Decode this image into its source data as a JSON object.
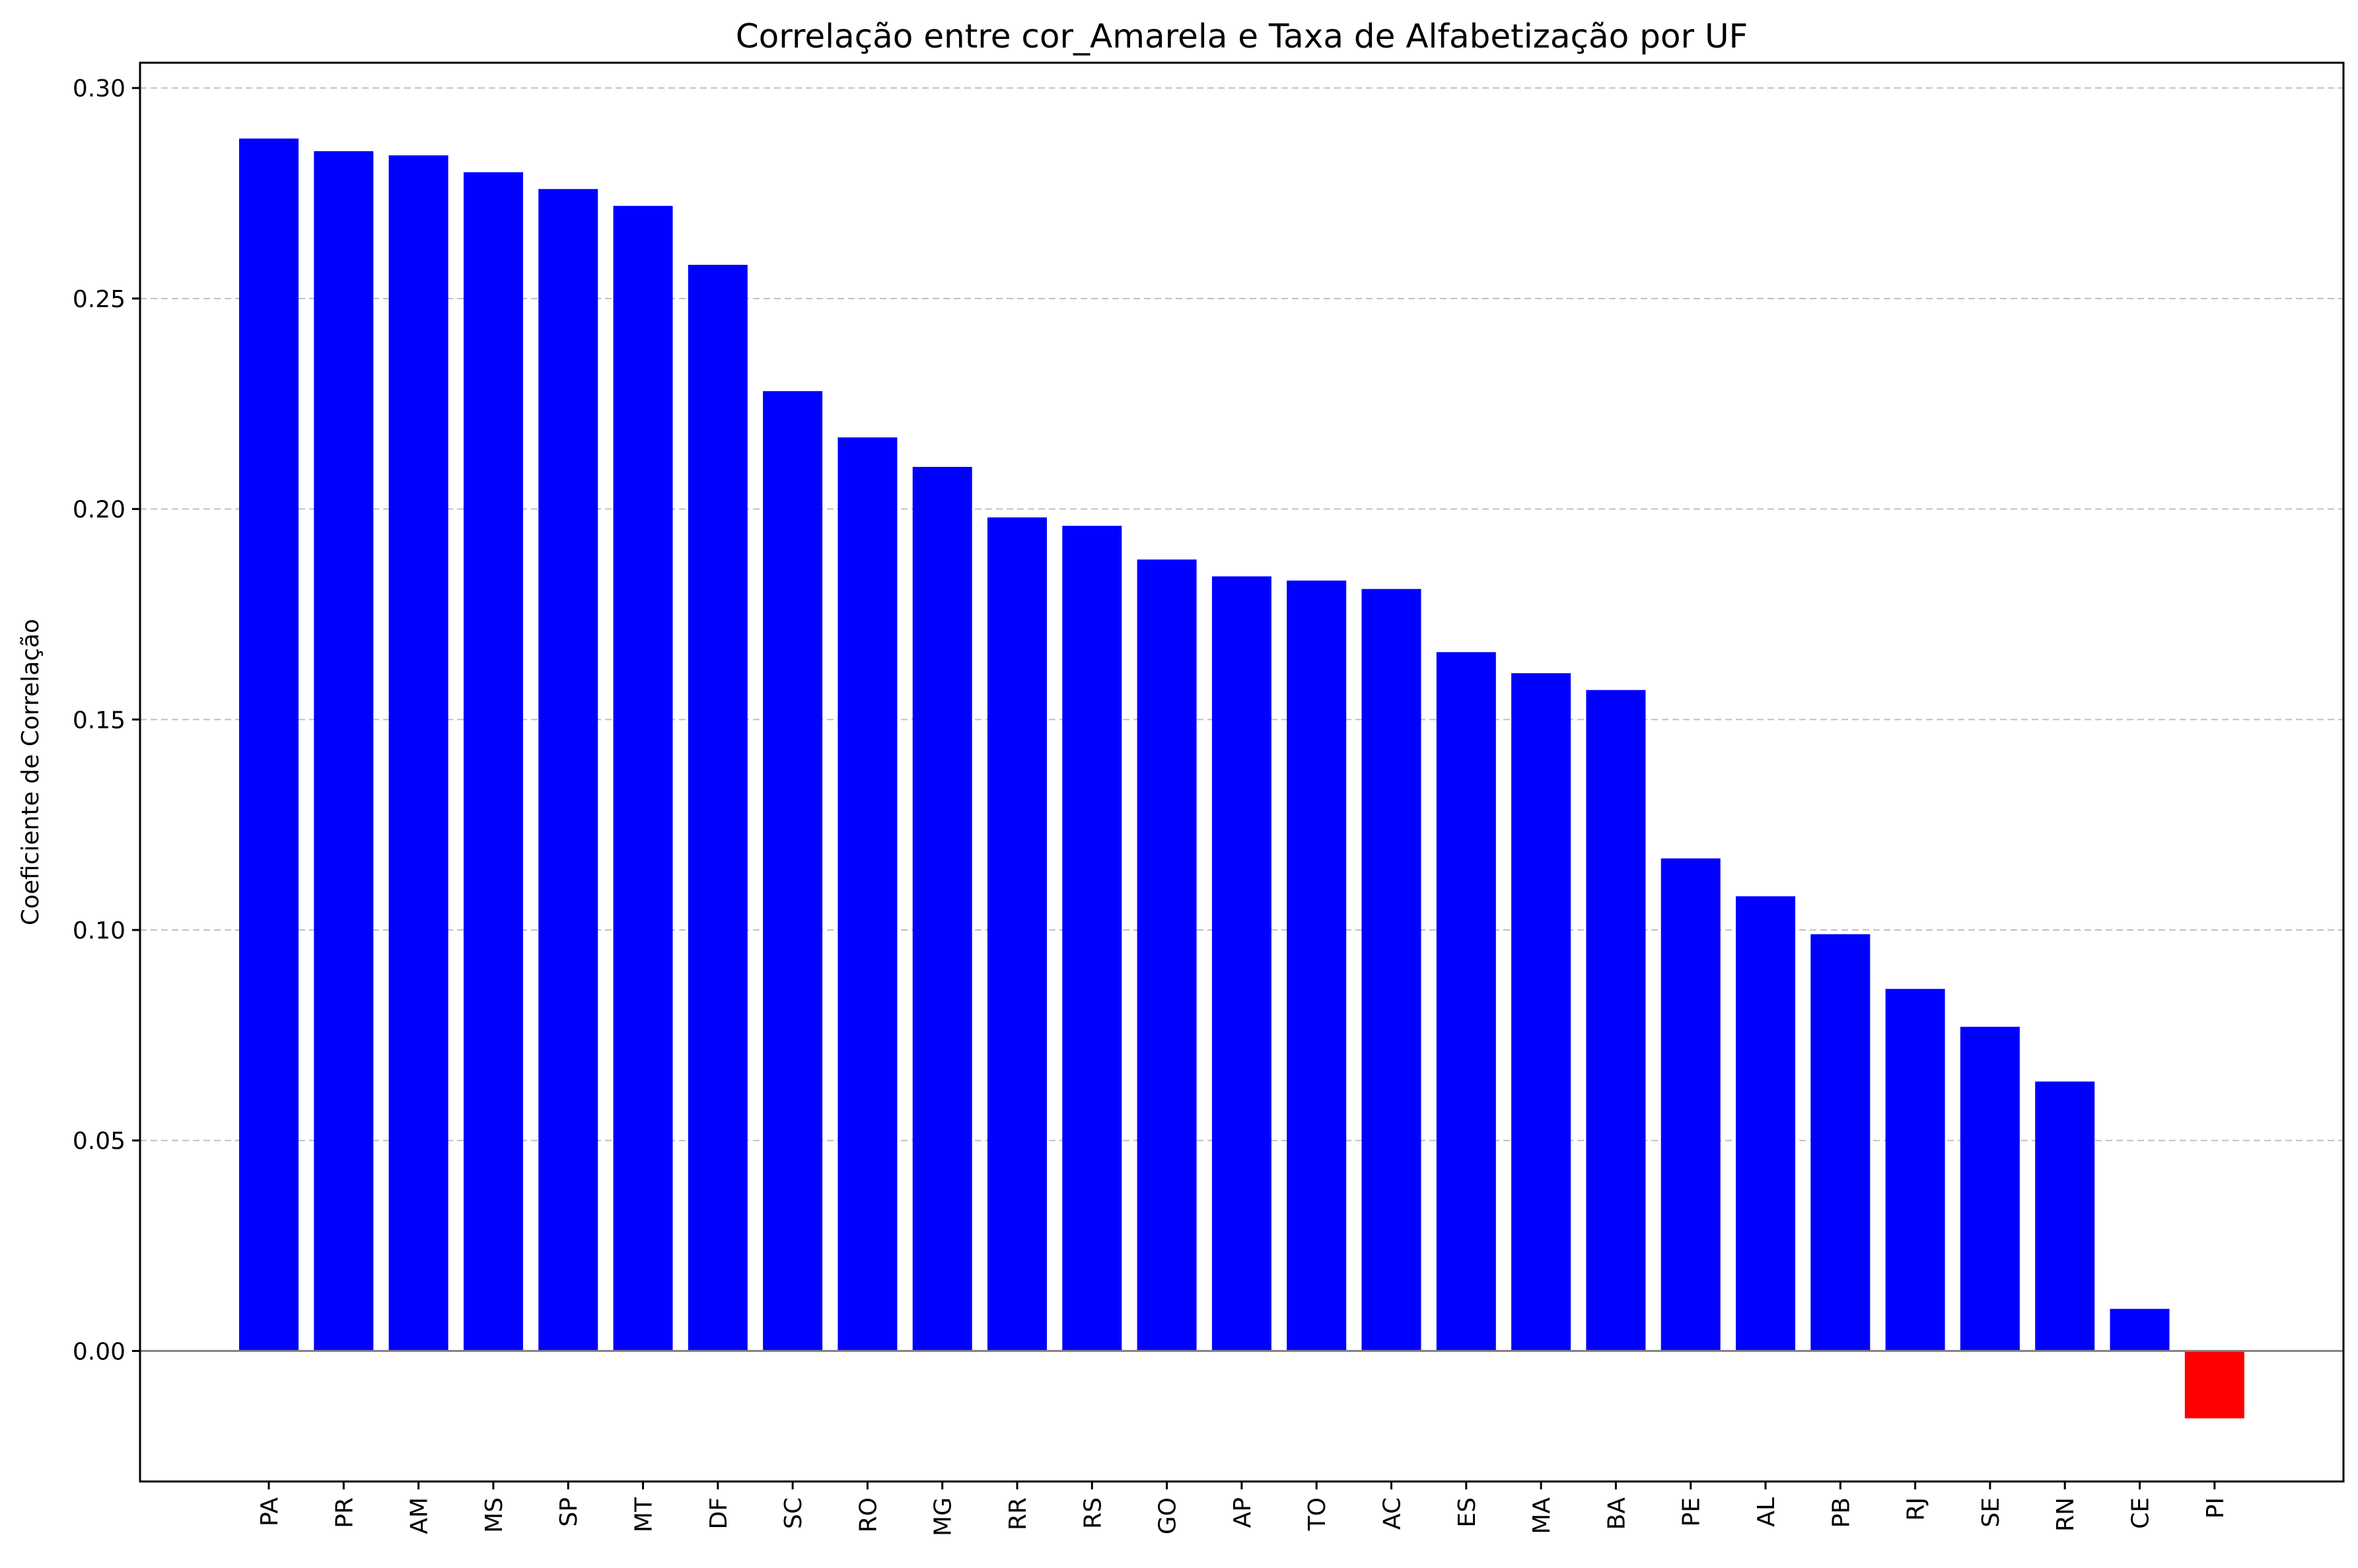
{
  "chart_data": {
    "type": "bar",
    "title": "Correlação entre cor_Amarela e Taxa de Alfabetização por UF",
    "xlabel": "",
    "ylabel": "Coeficiente de Correlação",
    "categories": [
      "PA",
      "PR",
      "AM",
      "MS",
      "SP",
      "MT",
      "DF",
      "SC",
      "RO",
      "MG",
      "RR",
      "RS",
      "GO",
      "AP",
      "TO",
      "AC",
      "ES",
      "MA",
      "BA",
      "PE",
      "AL",
      "PB",
      "RJ",
      "SE",
      "RN",
      "CE",
      "PI"
    ],
    "values": [
      0.288,
      0.285,
      0.284,
      0.28,
      0.276,
      0.272,
      0.258,
      0.228,
      0.217,
      0.21,
      0.198,
      0.196,
      0.188,
      0.184,
      0.183,
      0.181,
      0.166,
      0.161,
      0.157,
      0.117,
      0.108,
      0.099,
      0.086,
      0.077,
      0.064,
      0.01,
      -0.016
    ],
    "ylim": [
      -0.031,
      0.306
    ],
    "yticks": [
      "0.00",
      "0.05",
      "0.10",
      "0.15",
      "0.20",
      "0.25",
      "0.30"
    ],
    "grid": "y-dashed",
    "colors": {
      "positive": "#0000ff",
      "negative": "#ff0000",
      "grid": "#c0c0c0",
      "zero_line": "#808080"
    }
  }
}
